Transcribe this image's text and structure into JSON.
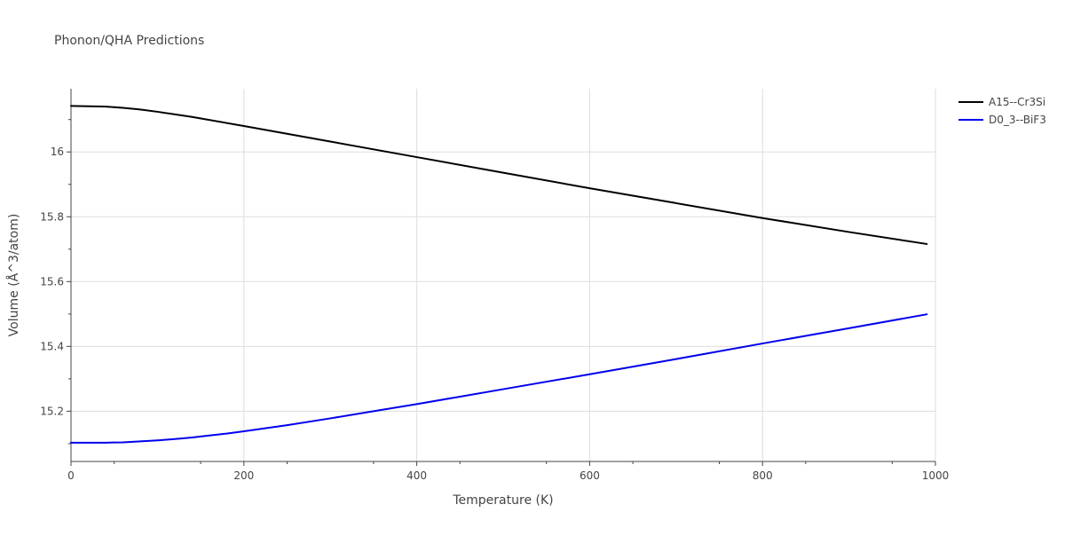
{
  "chart_data": {
    "type": "line",
    "title": "Phonon/QHA Predictions",
    "xlabel": "Temperature (K)",
    "ylabel": "Volume (Å^3/atom)",
    "xlim": [
      0,
      1000
    ],
    "ylim": [
      15.045,
      16.195
    ],
    "x_ticks": [
      0,
      200,
      400,
      600,
      800,
      1000
    ],
    "x_tick_labels": [
      "0",
      "200",
      "400",
      "600",
      "800",
      "1000"
    ],
    "y_ticks": [
      15.2,
      15.4,
      15.6,
      15.8,
      16.0
    ],
    "y_tick_labels": [
      "15.2",
      "15.4",
      "15.6",
      "15.8",
      "16"
    ],
    "grid": true,
    "legend_position": "top-right",
    "series": [
      {
        "name": "A15--Cr3Si",
        "color": "#000000",
        "x": [
          0,
          20,
          40,
          60,
          80,
          100,
          140,
          200,
          300,
          400,
          500,
          600,
          700,
          800,
          900,
          990
        ],
        "y": [
          16.142,
          16.141,
          16.14,
          16.136,
          16.131,
          16.124,
          16.108,
          16.08,
          16.032,
          15.984,
          15.936,
          15.888,
          15.842,
          15.796,
          15.753,
          15.716
        ]
      },
      {
        "name": "D0_3--BiF3",
        "color": "#0000ee",
        "x": [
          0,
          20,
          40,
          60,
          80,
          100,
          120,
          140,
          160,
          180,
          200,
          250,
          300,
          350,
          400,
          450,
          500,
          600,
          700,
          800,
          900,
          990
        ],
        "y": [
          15.103,
          15.103,
          15.103,
          15.104,
          15.107,
          15.11,
          15.114,
          15.119,
          15.125,
          15.131,
          15.138,
          15.157,
          15.178,
          15.2,
          15.222,
          15.245,
          15.268,
          15.314,
          15.361,
          15.409,
          15.456,
          15.499
        ]
      }
    ]
  }
}
